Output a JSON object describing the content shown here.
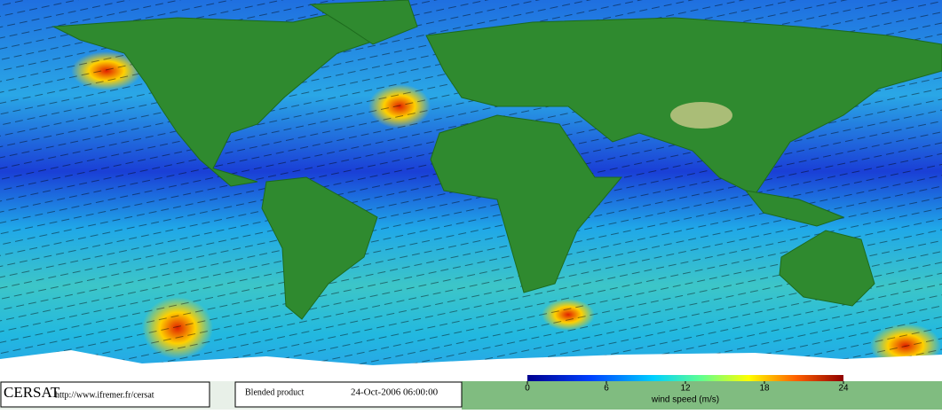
{
  "footer": {
    "logo": "CERSAT",
    "url": "http://www.ifremer.fr/cersat",
    "product": "Blended product",
    "date": "24-Oct-2006 06:00:00"
  },
  "colorbar": {
    "label": "wind speed (m/s)",
    "lim": [
      0,
      24
    ],
    "ticks": [
      0,
      6,
      12,
      18,
      24
    ]
  }
}
